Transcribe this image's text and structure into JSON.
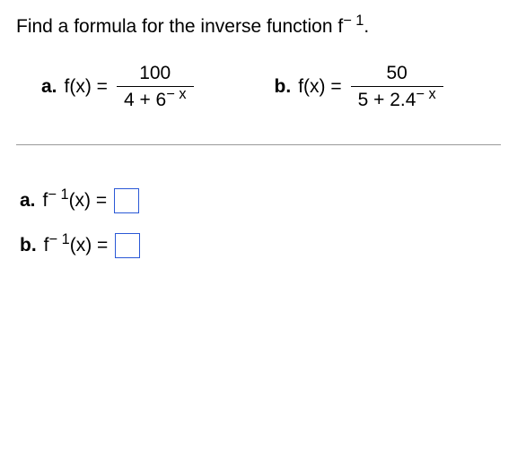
{
  "prompt": {
    "pre": "Find a formula for the inverse function f",
    "sup": "− 1",
    "post": "."
  },
  "problems": {
    "a": {
      "label": "a.",
      "lhs": "f(x) =",
      "num": "100",
      "den_pre": "4 + 6",
      "den_sup": "− x"
    },
    "b": {
      "label": "b.",
      "lhs": "f(x) =",
      "num": "50",
      "den_pre": "5 + 2.4",
      "den_sup": "− x"
    }
  },
  "answers": {
    "a": {
      "label": "a.",
      "pre": "f",
      "sup": "− 1",
      "post": "(x) ="
    },
    "b": {
      "label": "b.",
      "pre": "f",
      "sup": "− 1",
      "post": "(x) ="
    }
  }
}
